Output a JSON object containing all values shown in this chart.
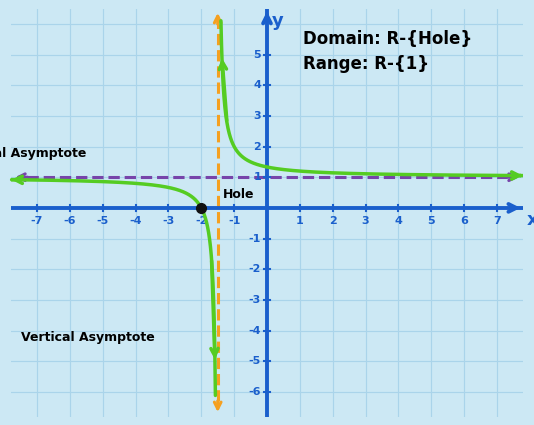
{
  "bg_color": "#cce8f4",
  "grid_color": "#aad4ea",
  "axis_color": "#1a5fcc",
  "curve_color": "#55cc22",
  "va_color": "#f5a020",
  "ha_color": "#7744aa",
  "hole_color": "#111111",
  "xlim": [
    -7.8,
    7.8
  ],
  "ylim": [
    -6.8,
    6.5
  ],
  "x_ticks": [
    -7,
    -6,
    -5,
    -4,
    -3,
    -2,
    -1,
    1,
    2,
    3,
    4,
    5,
    6,
    7
  ],
  "y_ticks": [
    -6,
    -5,
    -4,
    -3,
    -2,
    -1,
    1,
    2,
    3,
    4,
    5
  ],
  "va": -1.5,
  "ha": 1.0,
  "hole_x": -2.0,
  "hole_y": 0.0,
  "title": "Domain: R-{Hole}\nRange: R-{1}",
  "label_ha": "Horizontal Asymptote",
  "label_va": "Vertical Asymptote",
  "label_hole": "Hole",
  "curve_lw": 2.5,
  "axis_lw": 2.8,
  "font_tick": 8,
  "font_label": 9,
  "font_title": 12,
  "font_axis": 13
}
